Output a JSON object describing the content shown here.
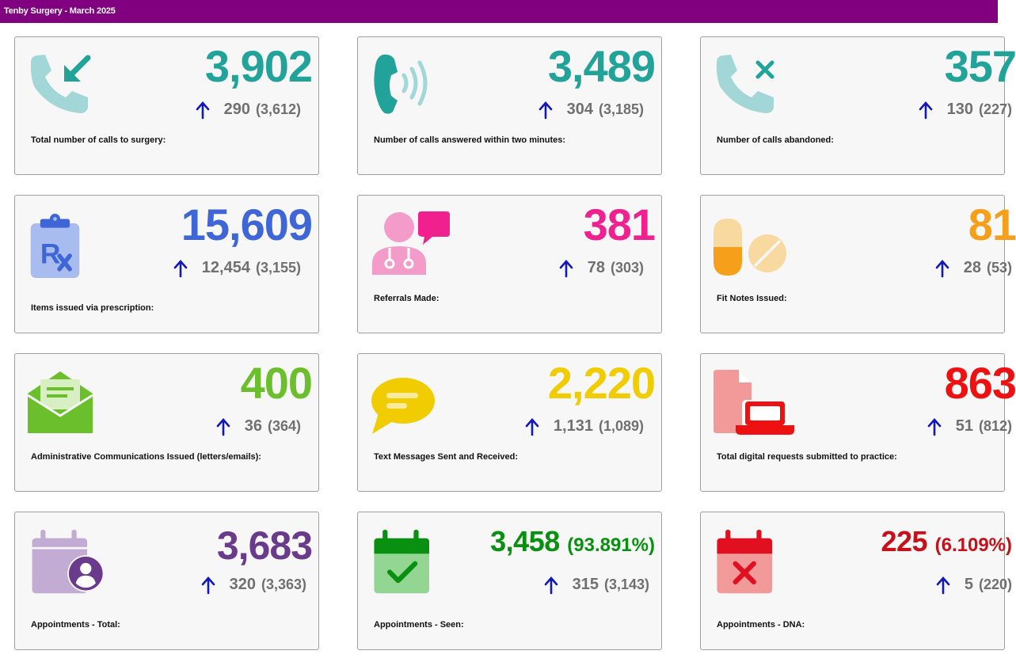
{
  "header": {
    "title": "Tenby Surgery - March 2025"
  },
  "colors": {
    "header_bg": "#800080",
    "teal": "#22a39a",
    "blue": "#3f66d6",
    "pink": "#f0208f",
    "orange": "#f59f1a",
    "green": "#6cbf2c",
    "yellow": "#f0cc00",
    "red": "#ee1111",
    "purple": "#6a3b8c",
    "dark_green": "#0a9010",
    "dark_red": "#c8101a",
    "arrow": "#1218c0"
  },
  "cards": [
    {
      "value": "3,902",
      "change": "290",
      "previous": "(3,612)",
      "label": "Total number of calls to surgery:",
      "icon": "incoming-call-icon",
      "trend": "up"
    },
    {
      "value": "3,489",
      "change": "304",
      "previous": "(3,185)",
      "label": "Number of calls answered within two minutes:",
      "icon": "phone-ringing-icon",
      "trend": "up"
    },
    {
      "value": "357",
      "change": "130",
      "previous": "(227)",
      "label": "Number of calls abandoned:",
      "icon": "missed-call-icon",
      "trend": "up"
    },
    {
      "value": "15,609",
      "change": "12,454",
      "previous": "(3,155)",
      "label": "Items issued via prescription:",
      "icon": "prescription-clipboard-icon",
      "trend": "up"
    },
    {
      "value": "381",
      "change": "78",
      "previous": "(303)",
      "label": "Referrals Made:",
      "icon": "doctor-referral-icon",
      "trend": "up"
    },
    {
      "value": "81",
      "change": "28",
      "previous": "(53)",
      "label": "Fit Notes Issued:",
      "icon": "pills-icon",
      "trend": "up"
    },
    {
      "value": "400",
      "change": "36",
      "previous": "(364)",
      "label": "Administrative Communications Issued (letters/emails):",
      "icon": "envelope-letter-icon",
      "trend": "up"
    },
    {
      "value": "2,220",
      "change": "1,131",
      "previous": "(1,089)",
      "label": "Text Messages Sent and Received:",
      "icon": "chat-bubble-icon",
      "trend": "up"
    },
    {
      "value": "863",
      "change": "51",
      "previous": "(812)",
      "label": "Total digital requests submitted to practice:",
      "icon": "digital-request-laptop-icon",
      "trend": "up"
    },
    {
      "value": "3,683",
      "change": "320",
      "previous": "(3,363)",
      "label": "Appointments - Total:",
      "icon": "calendar-user-icon",
      "trend": "up"
    },
    {
      "value": "3,458",
      "percent": "(93.891%)",
      "change": "315",
      "previous": "(3,143)",
      "label": "Appointments - Seen:",
      "icon": "calendar-check-icon",
      "trend": "up"
    },
    {
      "value": "225",
      "percent": "(6.109%)",
      "change": "5",
      "previous": "(220)",
      "label": "Appointments - DNA:",
      "icon": "calendar-x-icon",
      "trend": "up"
    }
  ]
}
